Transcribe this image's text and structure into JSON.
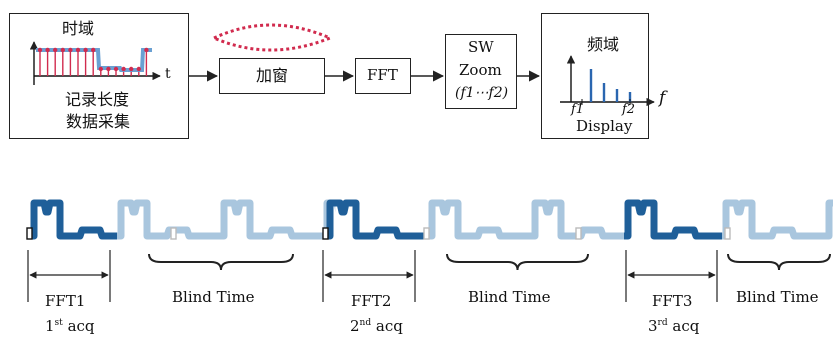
{
  "top_row": {
    "time_domain": {
      "title": "时域",
      "axis_t": "t",
      "caption_line1": "记录长度",
      "caption_line2": "数据采集"
    },
    "window_box": {
      "label": "加窗"
    },
    "fft_box": {
      "label": "FFT"
    },
    "zoom_box": {
      "line1": "SW",
      "line2": "Zoom",
      "line3": "(f1⋯f2)"
    },
    "freq_domain": {
      "title": "频域",
      "axis_f": "f",
      "f1": "f1",
      "f2": "f2",
      "caption": "Display"
    }
  },
  "timeline": {
    "segments": [
      {
        "fft_label": "FFT1",
        "acq_num": "1",
        "acq_sup": "st",
        "acq_word": "acq",
        "blind_label": "Blind Time"
      },
      {
        "fft_label": "FFT2",
        "acq_num": "2",
        "acq_sup": "nd",
        "acq_word": "acq",
        "blind_label": "Blind Time"
      },
      {
        "fft_label": "FFT3",
        "acq_num": "3",
        "acq_sup": "rd",
        "acq_word": "acq",
        "blind_label": "Blind Time"
      }
    ]
  },
  "colors": {
    "dark_signal": "#1f5f99",
    "light_signal": "#a9c6de",
    "sample_red": "#d12b4e",
    "spectrum_blue": "#2a66b0"
  }
}
